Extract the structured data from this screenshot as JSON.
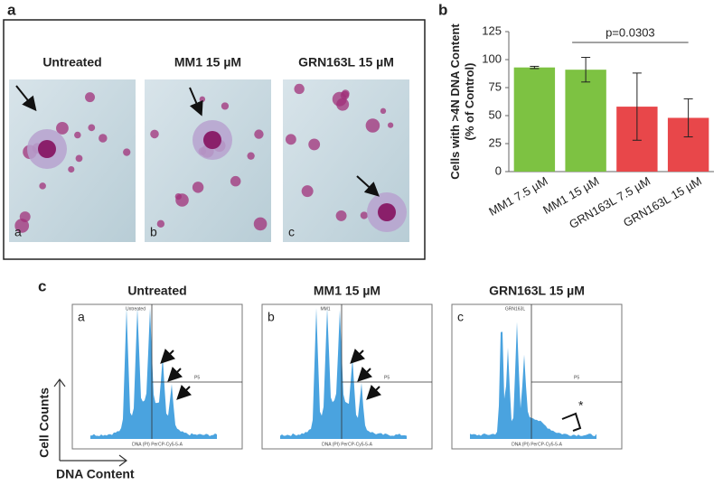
{
  "panel_a": {
    "label": "a",
    "images": [
      {
        "title": "Untreated",
        "letter": "a"
      },
      {
        "title": "MM1 15 µM",
        "letter": "b"
      },
      {
        "title": "GRN163L 15 µM",
        "letter": "c"
      }
    ]
  },
  "chart_data": {
    "type": "bar",
    "label": "b",
    "y_label": [
      "Cells with >4N DNA Content",
      "(% of Control)"
    ],
    "categories": [
      "MM1 7.5 µM",
      "MM1 15 µM",
      "GRN163L 7.5 µM",
      "GRN163L 15 µM"
    ],
    "values": [
      93,
      91,
      58,
      48
    ],
    "errors": [
      1,
      11,
      30,
      17
    ],
    "colors": [
      "#7dc242",
      "#7dc242",
      "#e8474a",
      "#e8474a"
    ],
    "ylim": [
      0,
      125
    ],
    "yticks": [
      0,
      25,
      50,
      75,
      100,
      125
    ],
    "annotation": "p=0.0303"
  },
  "panel_c": {
    "label": "c",
    "y_caption": "Cell Counts",
    "x_caption": "DNA Content",
    "plots": [
      {
        "title": "Untreated",
        "inner_title": "Untreated",
        "letter": "a",
        "gate": "P5",
        "x_label": "DNA (PI) PerCP-Cy5-5-A"
      },
      {
        "title": "MM1 15 µM",
        "inner_title": "MM1",
        "letter": "b",
        "gate": "P5",
        "x_label": "DNA (PI) PerCP-Cy5-5-A"
      },
      {
        "title": "GRN163L 15 µM",
        "inner_title": "GRN163L",
        "letter": "c",
        "gate": "P5",
        "x_label": "DNA (PI) PerCP-Cy5-5-A",
        "mark": "*"
      }
    ]
  }
}
